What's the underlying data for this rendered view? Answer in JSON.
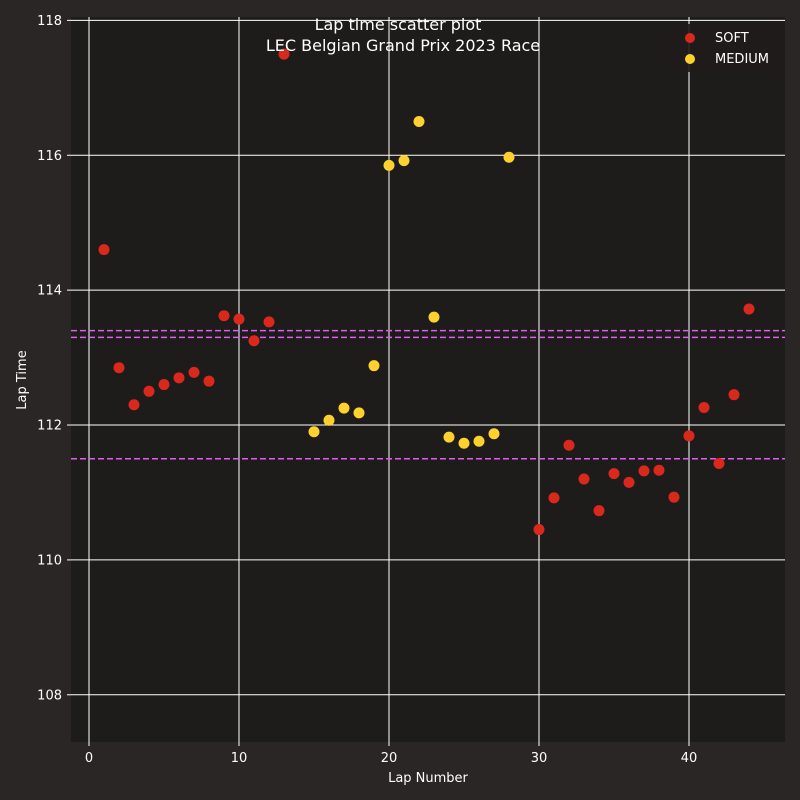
{
  "chart_data": {
    "type": "scatter",
    "title": "Lap time scatter plot",
    "subtitle": "LEC Belgian Grand Prix 2023 Race",
    "xlabel": "Lap Number",
    "ylabel": "Lap Time",
    "xlim": [
      -1.2,
      46.4
    ],
    "ylim": [
      107.3,
      118.05
    ],
    "xticks": [
      0,
      10,
      20,
      30,
      40
    ],
    "yticks": [
      108,
      110,
      112,
      114,
      116,
      118
    ],
    "grid": true,
    "legend_position": "top-right",
    "colors": {
      "background": "#292625",
      "plot_background": "#1e1c1b",
      "grid": "#ffffff",
      "reference_line": "#e15cf0"
    },
    "reference_lines": [
      113.4,
      113.3,
      111.5
    ],
    "series": [
      {
        "name": "SOFT",
        "color": "#da291c",
        "points": [
          [
            1,
            114.6
          ],
          [
            2,
            112.85
          ],
          [
            3,
            112.3
          ],
          [
            4,
            112.5
          ],
          [
            5,
            112.6
          ],
          [
            6,
            112.7
          ],
          [
            7,
            112.78
          ],
          [
            8,
            112.65
          ],
          [
            9,
            113.62
          ],
          [
            10,
            113.57
          ],
          [
            11,
            113.25
          ],
          [
            12,
            113.53
          ],
          [
            13,
            117.5
          ],
          [
            30,
            110.45
          ],
          [
            31,
            110.92
          ],
          [
            32,
            111.7
          ],
          [
            33,
            111.2
          ],
          [
            34,
            110.73
          ],
          [
            35,
            111.28
          ],
          [
            36,
            111.15
          ],
          [
            37,
            111.32
          ],
          [
            38,
            111.33
          ],
          [
            39,
            110.93
          ],
          [
            40,
            111.84
          ],
          [
            41,
            112.26
          ],
          [
            42,
            111.43
          ],
          [
            43,
            112.45
          ],
          [
            44,
            113.72
          ]
        ]
      },
      {
        "name": "MEDIUM",
        "color": "#ffd12e",
        "points": [
          [
            15,
            111.9
          ],
          [
            16,
            112.07
          ],
          [
            17,
            112.25
          ],
          [
            18,
            112.18
          ],
          [
            19,
            112.88
          ],
          [
            20,
            115.85
          ],
          [
            21,
            115.92
          ],
          [
            22,
            116.5
          ],
          [
            23,
            113.6
          ],
          [
            24,
            111.82
          ],
          [
            25,
            111.73
          ],
          [
            26,
            111.76
          ],
          [
            27,
            111.87
          ],
          [
            28,
            115.97
          ]
        ]
      }
    ]
  }
}
